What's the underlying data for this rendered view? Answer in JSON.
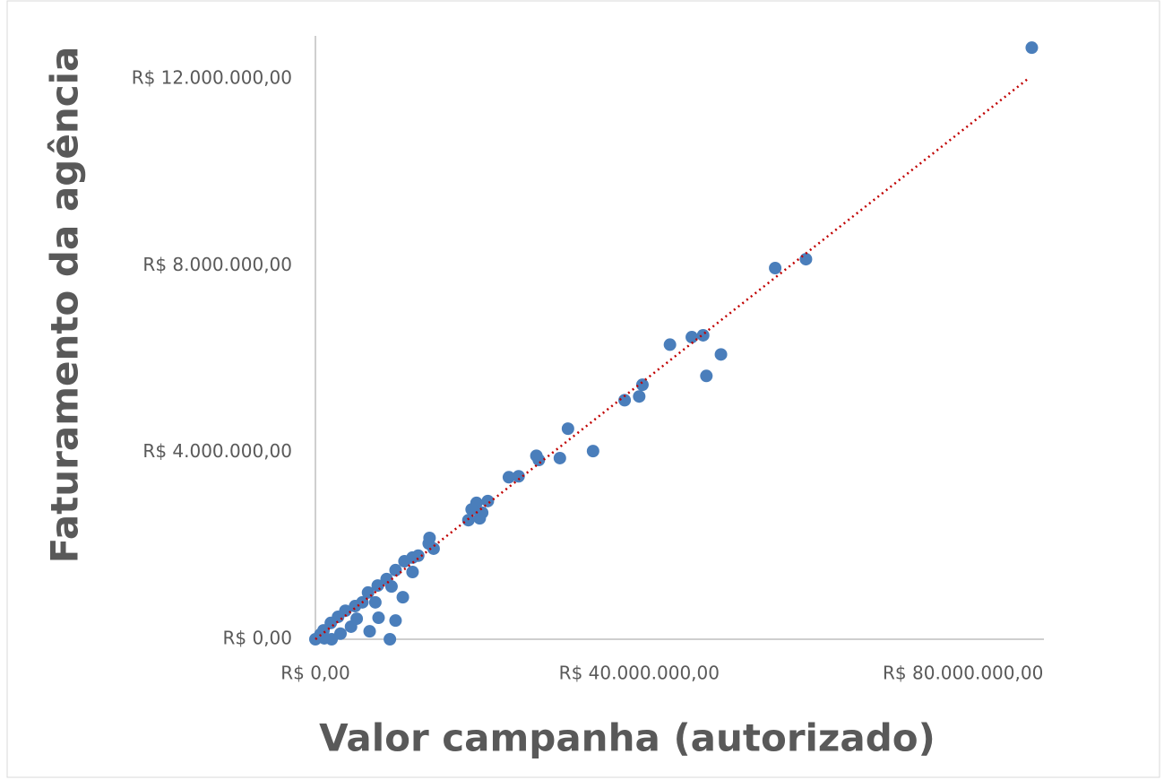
{
  "chart_data": {
    "type": "scatter",
    "x_label": "Valor campanha (autorizado)",
    "y_label": "Faturamento da agência",
    "color": "#4a7ebb",
    "x": [
      88500000,
      60600000,
      56800000,
      47900000,
      46500000,
      43800000,
      50100000,
      48300000,
      40400000,
      40000000,
      38200000,
      31200000,
      34300000,
      27300000,
      27600000,
      30200000,
      23900000,
      25100000,
      21300000,
      19900000,
      19300000,
      20600000,
      18900000,
      20300000,
      14100000,
      14000000,
      14600000,
      12700000,
      12000000,
      11000000,
      9900000,
      12000000,
      8800000,
      9400000,
      7700000,
      6500000,
      10800000,
      7400000,
      5800000,
      4900000,
      3700000,
      2800000,
      1900000,
      1000000,
      600000,
      0,
      7800000,
      9900000,
      6700000,
      9200000,
      5100000,
      4400000,
      3100000,
      2000000,
      1100000
    ],
    "y": [
      12670000,
      8140000,
      7950000,
      6510000,
      6470000,
      6310000,
      6100000,
      5640000,
      5450000,
      5200000,
      5120000,
      4510000,
      4030000,
      3930000,
      3840000,
      3880000,
      3470000,
      3490000,
      2960000,
      2920000,
      2780000,
      2710000,
      2550000,
      2590000,
      2170000,
      2050000,
      1940000,
      1790000,
      1750000,
      1670000,
      1480000,
      1440000,
      1290000,
      1130000,
      1150000,
      1000000,
      900000,
      790000,
      790000,
      710000,
      610000,
      480000,
      350000,
      190000,
      100000,
      0,
      460000,
      400000,
      170000,
      0,
      440000,
      270000,
      120000,
      0,
      20000
    ],
    "trendline": {
      "x": [
        0,
        88000000
      ],
      "y": [
        0,
        12000000
      ],
      "color": "#c00000"
    },
    "xlim": [
      0,
      90000000
    ],
    "ylim": [
      0,
      13000000
    ],
    "xticks": [
      {
        "value": 0,
        "label": "R$ 0,00"
      },
      {
        "value": 40000000,
        "label": "R$ 40.000.000,00"
      },
      {
        "value": 80000000,
        "label": "R$ 80.000.000,00"
      }
    ],
    "yticks": [
      {
        "value": 0,
        "label": "R$ 0,00"
      },
      {
        "value": 4000000,
        "label": "R$ 4.000.000,00"
      },
      {
        "value": 8000000,
        "label": "R$ 8.000.000,00"
      },
      {
        "value": 12000000,
        "label": "R$ 12.000.000,00"
      }
    ],
    "grid": false
  }
}
